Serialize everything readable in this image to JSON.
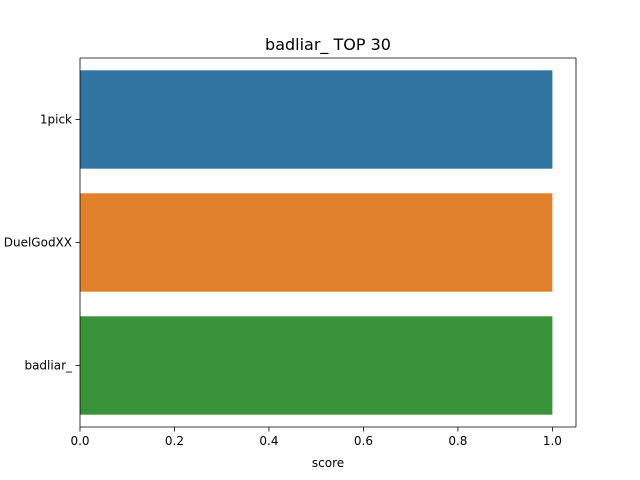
{
  "chart_data": {
    "type": "bar",
    "orientation": "horizontal",
    "title": "badliar_ TOP 30",
    "xlabel": "score",
    "ylabel": "",
    "categories": [
      "1pick",
      "DuelGodXX",
      "badliar_"
    ],
    "values": [
      1.0,
      1.0,
      1.0
    ],
    "colors": [
      "#3274a1",
      "#e1812c",
      "#3a923a"
    ],
    "xlim": [
      0.0,
      1.05
    ],
    "xticks": [
      0.0,
      0.2,
      0.4,
      0.6,
      0.8,
      1.0
    ],
    "xtick_labels": [
      "0.0",
      "0.2",
      "0.4",
      "0.6",
      "0.8",
      "1.0"
    ],
    "grid": false,
    "legend": "none"
  }
}
